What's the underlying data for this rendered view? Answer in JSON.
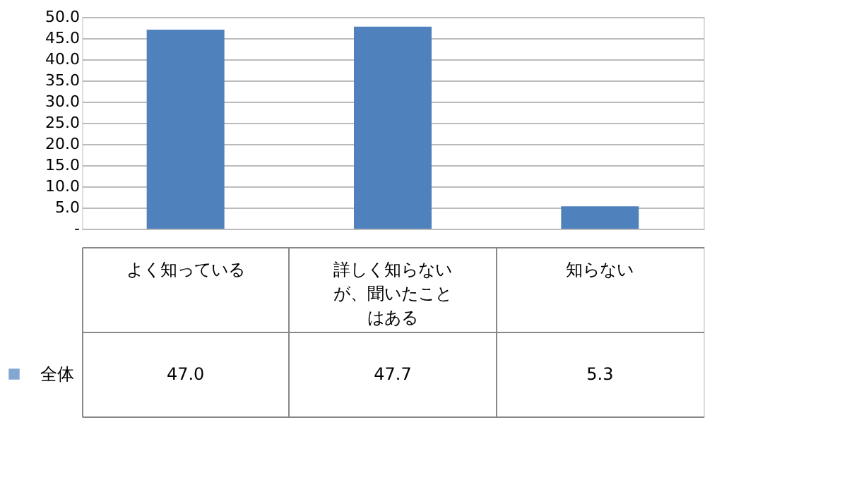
{
  "chart_data": {
    "type": "bar",
    "categories": [
      "よく知っている",
      "詳しく知らないが、聞いたことはある",
      "知らない"
    ],
    "series": [
      {
        "name": "全体",
        "color": "#4f81bd",
        "values": [
          47.0,
          47.7,
          5.3
        ],
        "value_labels": [
          "47.0",
          "47.7",
          "5.3"
        ]
      }
    ],
    "ylim": [
      0,
      50
    ],
    "yticks": [
      {
        "value": 0,
        "label": "-"
      },
      {
        "value": 5,
        "label": "5.0"
      },
      {
        "value": 10,
        "label": "10.0"
      },
      {
        "value": 15,
        "label": "15.0"
      },
      {
        "value": 20,
        "label": "20.0"
      },
      {
        "value": 25,
        "label": "25.0"
      },
      {
        "value": 30,
        "label": "30.0"
      },
      {
        "value": 35,
        "label": "35.0"
      },
      {
        "value": 40,
        "label": "40.0"
      },
      {
        "value": 45,
        "label": "45.0"
      },
      {
        "value": 50,
        "label": "50.0"
      }
    ],
    "grid": "y",
    "legend": "bottom left"
  }
}
